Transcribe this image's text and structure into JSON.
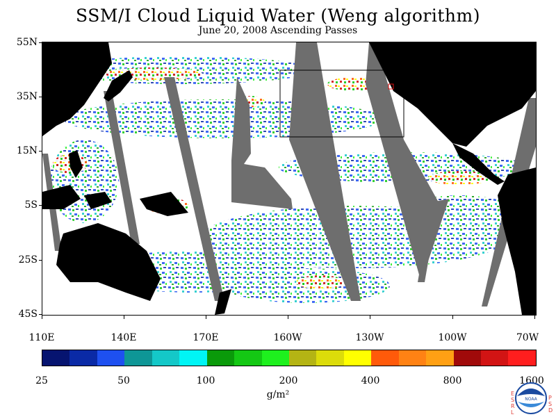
{
  "header": {
    "title": "SSM/I Cloud Liquid Water (Weng algorithm)",
    "subtitle": "June 20, 2008  Ascending Passes"
  },
  "map": {
    "region": "Pacific Ocean",
    "lat_labels": [
      "55N",
      "35N",
      "15N",
      "5S",
      "25S",
      "45S"
    ],
    "lon_labels": [
      "110E",
      "140E",
      "170E",
      "160W",
      "130W",
      "100W",
      "70W"
    ],
    "land_color": "#000000",
    "no_data_color": "#6e6e6e",
    "clear_color": "#ffffff",
    "outline_box": "black rectangle outline over northeast Pacific",
    "marker": "small red square off North American coast"
  },
  "colorbar": {
    "labels": [
      "25",
      "50",
      "100",
      "200",
      "400",
      "800",
      "1600"
    ],
    "units": "g/m²",
    "colors": [
      "#061470",
      "#0a2aa6",
      "#1e50f0",
      "#0e9696",
      "#14c8c8",
      "#00f5f5",
      "#0a9a0a",
      "#14c814",
      "#1ef01e",
      "#b4b414",
      "#dcdc0a",
      "#ffff00",
      "#ff5a0a",
      "#ff8214",
      "#ffa014",
      "#a00a0a",
      "#d21414",
      "#ff1e1e"
    ]
  },
  "logo": {
    "name": "NOAA",
    "side_left": "ESRL",
    "side_right": "PSD"
  }
}
